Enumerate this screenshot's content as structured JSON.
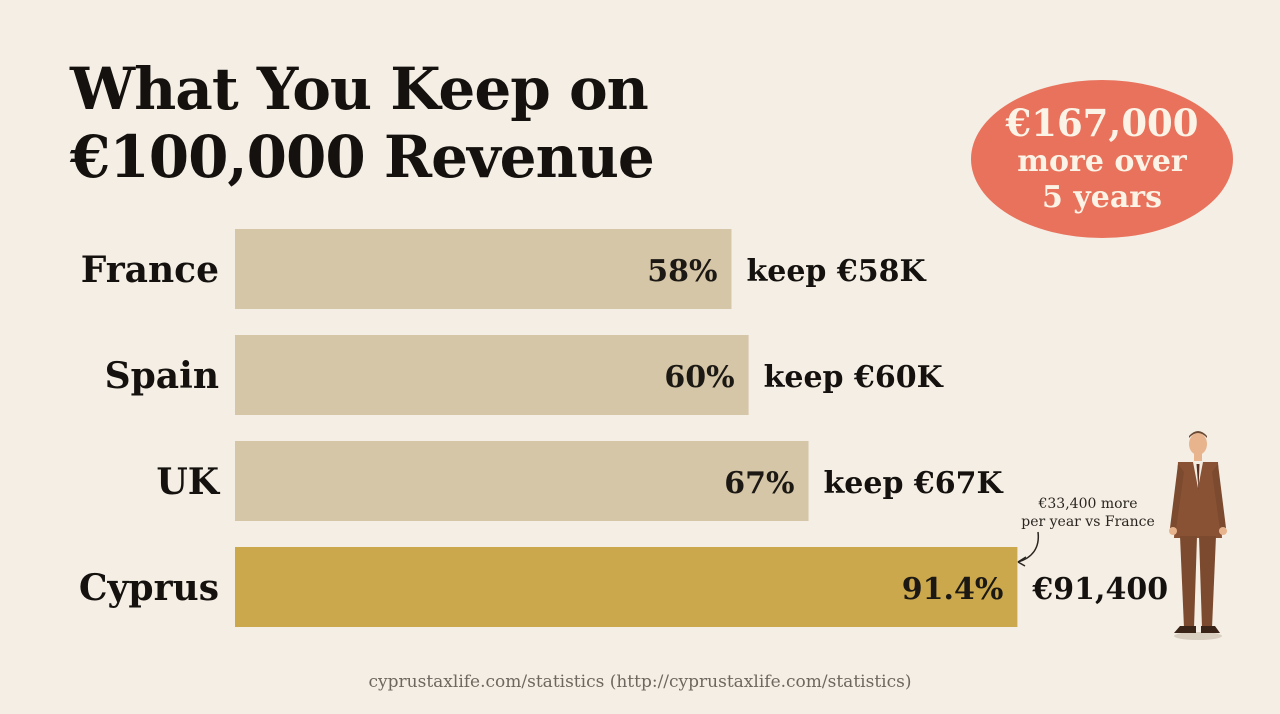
{
  "title_lines": [
    "What You Keep on",
    "€100,000 Revenue"
  ],
  "badge": {
    "line1": "€167,000",
    "line2": "more over",
    "line3": "5 years"
  },
  "annotation": {
    "line1": "€33,400 more",
    "line2": "per year vs France"
  },
  "footer": "cyprustaxlife.com/statistics (http://cyprustaxlife.com/statistics)",
  "colors": {
    "bar": "#d6c6a8",
    "highlight": "#cba84c",
    "badge": "#e8725c",
    "background": "#f4eee4"
  },
  "chart_data": {
    "type": "bar",
    "orientation": "horizontal",
    "categories": [
      "France",
      "Spain",
      "UK",
      "Cyprus"
    ],
    "values": [
      58,
      60,
      67,
      91.4
    ],
    "value_labels": [
      "58%",
      "60%",
      "67%",
      "91.4%"
    ],
    "side_labels": [
      "keep €58K",
      "keep €60K",
      "keep €67K",
      "€91,400"
    ],
    "highlight_index": 3,
    "unit": "%",
    "xlim": [
      0,
      100
    ]
  }
}
